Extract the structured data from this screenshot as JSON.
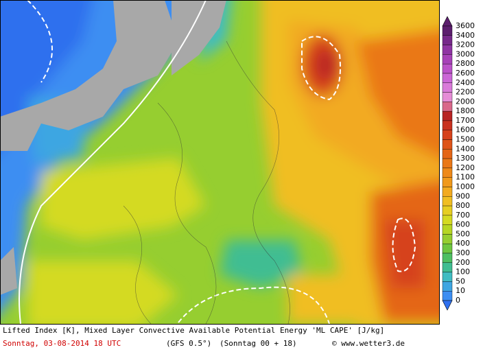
{
  "legend": {
    "items": [
      {
        "label": "3600",
        "color": "#5c1f6e"
      },
      {
        "label": "3400",
        "color": "#76298a"
      },
      {
        "label": "3200",
        "color": "#8f35a3"
      },
      {
        "label": "3000",
        "color": "#a742b8"
      },
      {
        "label": "2800",
        "color": "#bb52c9"
      },
      {
        "label": "2600",
        "color": "#cb66d6"
      },
      {
        "label": "2400",
        "color": "#d97ad9"
      },
      {
        "label": "2200",
        "color": "#e58cd6"
      },
      {
        "label": "2000",
        "color": "#d9688a"
      },
      {
        "label": "1800",
        "color": "#b82424"
      },
      {
        "label": "1700",
        "color": "#c93220"
      },
      {
        "label": "1600",
        "color": "#d6421c"
      },
      {
        "label": "1500",
        "color": "#de5419"
      },
      {
        "label": "1400",
        "color": "#e46618"
      },
      {
        "label": "1300",
        "color": "#ea7818"
      },
      {
        "label": "1200",
        "color": "#ee891a"
      },
      {
        "label": "1100",
        "color": "#f0991c"
      },
      {
        "label": "1000",
        "color": "#f2aa20"
      },
      {
        "label": "900",
        "color": "#f0be22"
      },
      {
        "label": "800",
        "color": "#e6ce22"
      },
      {
        "label": "700",
        "color": "#d4da22"
      },
      {
        "label": "600",
        "color": "#b6d624"
      },
      {
        "label": "500",
        "color": "#96ce30"
      },
      {
        "label": "400",
        "color": "#6ec640"
      },
      {
        "label": "300",
        "color": "#4ebf62"
      },
      {
        "label": "200",
        "color": "#40bd92"
      },
      {
        "label": "100",
        "color": "#40bcc2"
      },
      {
        "label": "50",
        "color": "#3ea6e2"
      },
      {
        "label": "10",
        "color": "#3c8ef2"
      },
      {
        "label": "0",
        "color": "#2f70ee"
      }
    ]
  },
  "caption": {
    "line1": "Lifted Index [K], Mixed Layer Convective Available Potential Energy 'ML CAPE' [J/kg]",
    "date": "Sonntag, 03-08-2014  18 UTC",
    "model": "(GFS 0.5°)",
    "run": "(Sonntag 00 + 18)",
    "copyright": "© www.wetter3.de"
  }
}
